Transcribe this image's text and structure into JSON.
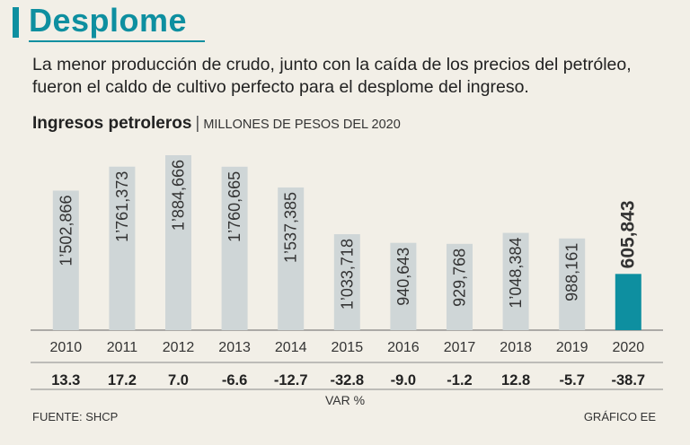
{
  "title": "Desplome",
  "subtitle": "La menor producción de crudo, junto con la caída de los precios del petróleo, fueron el caldo de cultivo perfecto para el desplome del ingreso.",
  "chart_heading": "Ingresos petroleros",
  "chart_separator": "|",
  "chart_units": "MILLONES DE PESOS DEL 2020",
  "source": "FUENTE: SHCP",
  "credit": "GRÁFICO EE",
  "colors": {
    "accent": "#0e8fa0",
    "bar": "#cfd6d7",
    "highlight": "#0e8fa0",
    "background": "#f2efe7"
  },
  "chart_data": {
    "type": "bar",
    "title": "Ingresos petroleros",
    "ylabel": "MILLONES DE PESOS DEL 2020",
    "categories": [
      "2010",
      "2011",
      "2012",
      "2013",
      "2014",
      "2015",
      "2016",
      "2017",
      "2018",
      "2019",
      "2020"
    ],
    "values": [
      1502866,
      1761373,
      1884666,
      1760665,
      1537385,
      1033718,
      940643,
      929768,
      1048384,
      988161,
      605843
    ],
    "value_labels": [
      "1’502,866",
      "1’761,373",
      "1’884,666",
      "1’760,665",
      "1’537,385",
      "1’033,718",
      "940,643",
      "929,768",
      "1’048,384",
      "988,161",
      "605,843"
    ],
    "highlight_index": 10,
    "ylim": [
      0,
      1900000
    ],
    "var_label": "VAR %",
    "var_values": [
      "13.3",
      "17.2",
      "7.0",
      "-6.6",
      "-12.7",
      "-32.8",
      "-9.0",
      "-1.2",
      "12.8",
      "-5.7",
      "-38.7"
    ]
  }
}
